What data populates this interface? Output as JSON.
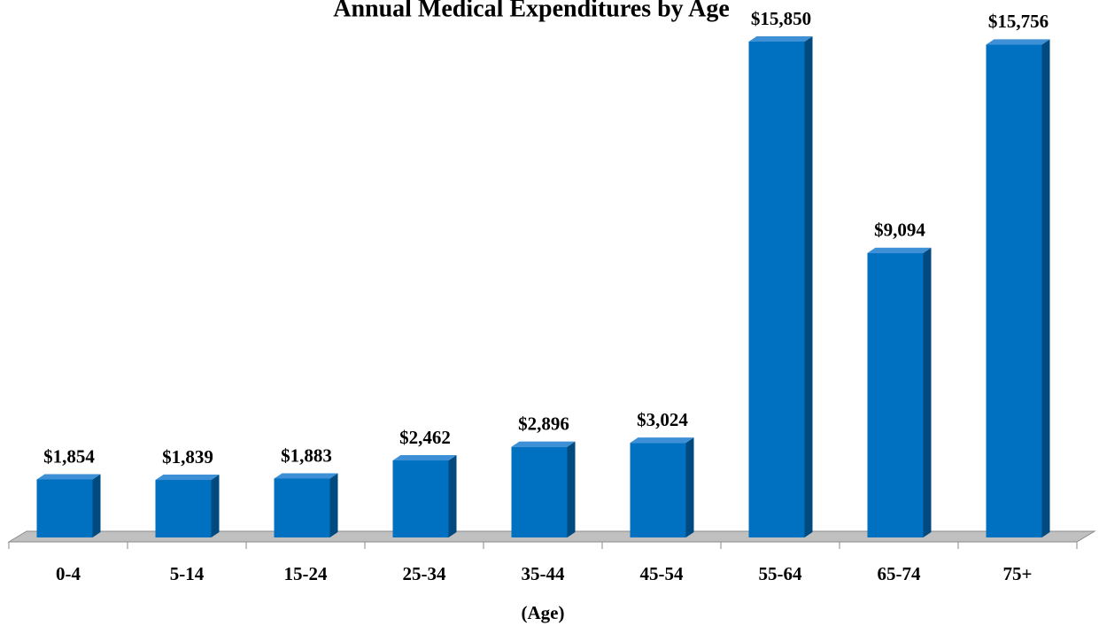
{
  "chart_data": {
    "type": "bar",
    "title": "Annual Medical Expenditures by Age",
    "x_label": "(Age)",
    "categories": [
      "0-4",
      "5-14",
      "15-24",
      "25-34",
      "35-44",
      "45-54",
      "55-64",
      "65-74",
      "75+"
    ],
    "values": [
      1854,
      1839,
      1883,
      2462,
      2896,
      3024,
      15850,
      9094,
      15756
    ],
    "value_labels": [
      "$1,854",
      "$1,839",
      "$1,883",
      "$2,462",
      "$2,896",
      "$3,024",
      "$15,850",
      "$9,094",
      "$15,756"
    ],
    "color": "#0070c0"
  }
}
